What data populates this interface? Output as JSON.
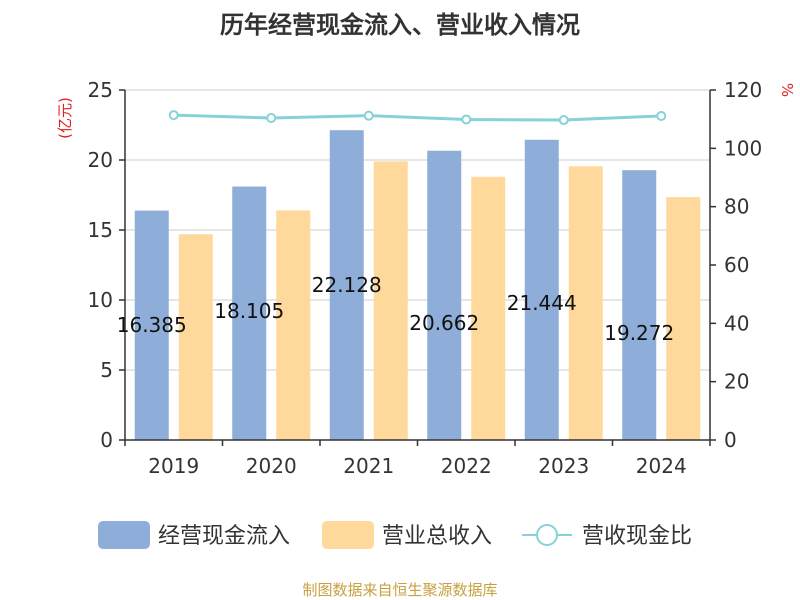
{
  "chart_data": {
    "type": "bar",
    "title": "历年经营现金流入、营业收入情况",
    "categories": [
      "2019",
      "2020",
      "2021",
      "2022",
      "2023",
      "2024"
    ],
    "series": [
      {
        "name": "经营现金流入",
        "kind": "bar",
        "axis": "left",
        "color": "#8eadd9",
        "values": [
          16.385,
          18.105,
          22.128,
          20.662,
          21.444,
          19.272
        ]
      },
      {
        "name": "营业总收入",
        "kind": "bar",
        "axis": "left",
        "color": "#ffd99b",
        "values": [
          14.7,
          16.4,
          19.9,
          18.8,
          19.55,
          17.35
        ]
      },
      {
        "name": "营收现金比",
        "kind": "line",
        "axis": "right",
        "color": "#85d3d8",
        "values": [
          111.4,
          110.4,
          111.2,
          109.9,
          109.7,
          111.1
        ]
      }
    ],
    "data_labels": [
      "16.385",
      "18.105",
      "22.128",
      "20.662",
      "21.444",
      "19.272"
    ],
    "y_left": {
      "unit": "(亿元)",
      "ylim": [
        0,
        25
      ],
      "ticks": [
        0,
        5,
        10,
        15,
        20,
        25
      ]
    },
    "y_right": {
      "unit": "%",
      "ylim": [
        0,
        120
      ],
      "ticks": [
        0,
        20,
        40,
        60,
        80,
        100,
        120
      ]
    },
    "grid": true,
    "legend_position": "bottom"
  },
  "source_note": "制图数据来自恒生聚源数据库"
}
